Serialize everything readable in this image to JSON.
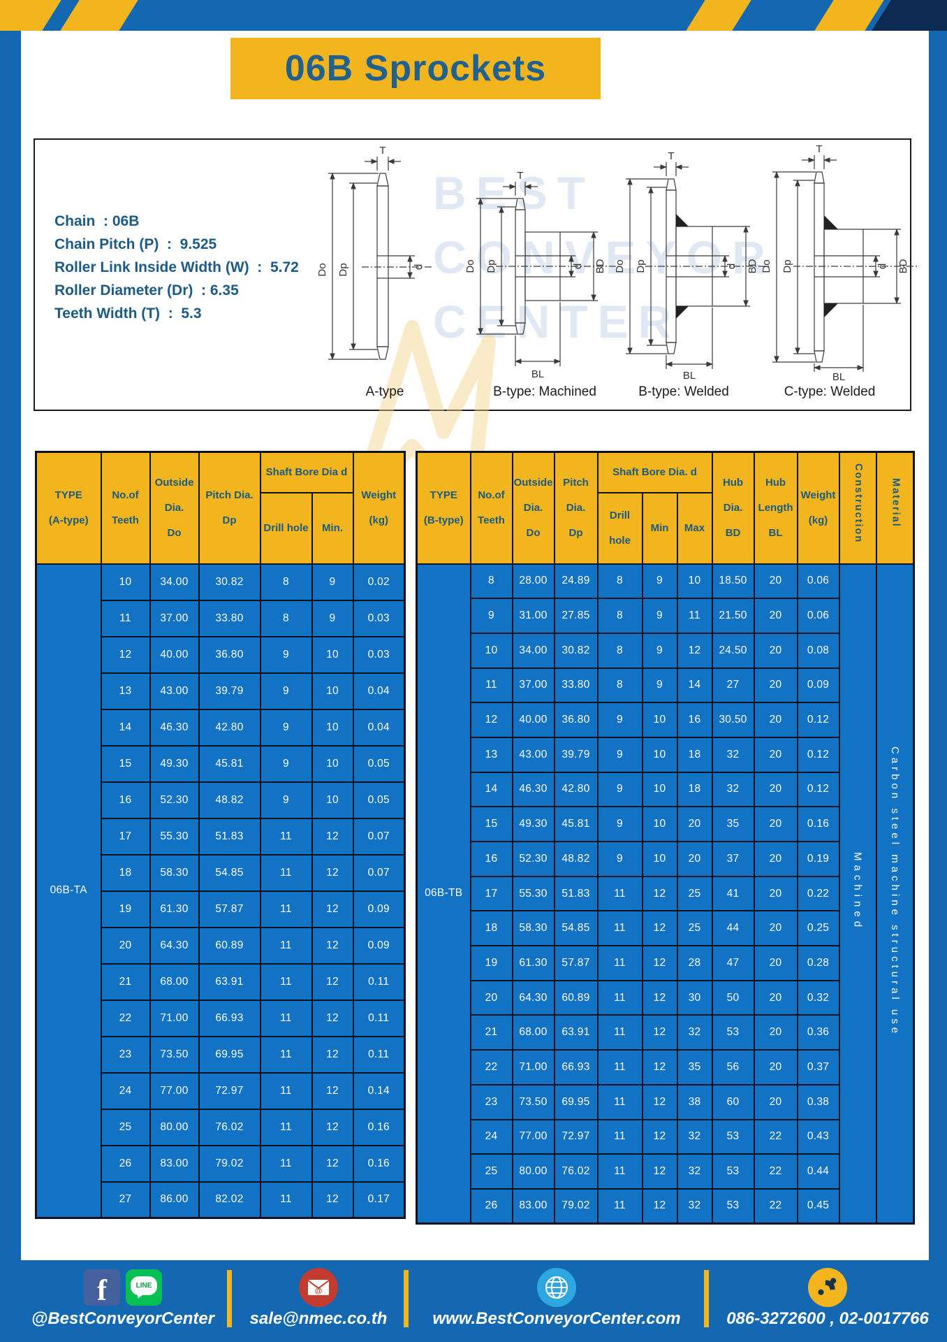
{
  "page": {
    "title": "06B Sprockets"
  },
  "specs": {
    "lines": [
      "Chain  : 06B",
      "Chain Pitch (P)  :  9.525",
      "Roller Link Inside Width (W)  :  5.72",
      "Roller Diameter (Dr)  : 6.35",
      "Teeth Width (T)  :  5.3"
    ]
  },
  "diagrams": {
    "captions": [
      "A-type",
      "B-type: Machined",
      "B-type: Welded",
      "C-type: Welded"
    ],
    "dims": {
      "t": "T",
      "dia_o": "Do",
      "dia_p": "Dp",
      "d": "d",
      "bd": "BD",
      "bl": "BL"
    }
  },
  "watermark": {
    "lines": [
      "BEST",
      "CONVEYOR",
      "CENTER"
    ]
  },
  "table_a": {
    "header": {
      "type": "TYPE\n(A-type)",
      "teeth": "No.of\nTeeth",
      "outside_dia": "Outside\nDia.\nDo",
      "pitch_dia": "Pitch Dia.\nDp",
      "bore_group": "Shaft Bore Dia d",
      "drill": "Drill hole",
      "min": "Min.",
      "weight": "Weight\n(kg)"
    },
    "type_label": "06B-TA",
    "rows": [
      [
        "10",
        "34.00",
        "30.82",
        "8",
        "9",
        "0.02"
      ],
      [
        "11",
        "37.00",
        "33.80",
        "8",
        "9",
        "0.03"
      ],
      [
        "12",
        "40.00",
        "36.80",
        "9",
        "10",
        "0.03"
      ],
      [
        "13",
        "43.00",
        "39.79",
        "9",
        "10",
        "0.04"
      ],
      [
        "14",
        "46.30",
        "42.80",
        "9",
        "10",
        "0.04"
      ],
      [
        "15",
        "49.30",
        "45.81",
        "9",
        "10",
        "0.05"
      ],
      [
        "16",
        "52.30",
        "48.82",
        "9",
        "10",
        "0.05"
      ],
      [
        "17",
        "55.30",
        "51.83",
        "11",
        "12",
        "0.07"
      ],
      [
        "18",
        "58.30",
        "54.85",
        "11",
        "12",
        "0.07"
      ],
      [
        "19",
        "61.30",
        "57.87",
        "11",
        "12",
        "0.09"
      ],
      [
        "20",
        "64.30",
        "60.89",
        "11",
        "12",
        "0.09"
      ],
      [
        "21",
        "68.00",
        "63.91",
        "11",
        "12",
        "0.11"
      ],
      [
        "22",
        "71.00",
        "66.93",
        "11",
        "12",
        "0.11"
      ],
      [
        "23",
        "73.50",
        "69.95",
        "11",
        "12",
        "0.11"
      ],
      [
        "24",
        "77.00",
        "72.97",
        "11",
        "12",
        "0.14"
      ],
      [
        "25",
        "80.00",
        "76.02",
        "11",
        "12",
        "0.16"
      ],
      [
        "26",
        "83.00",
        "79.02",
        "11",
        "12",
        "0.16"
      ],
      [
        "27",
        "86.00",
        "82.02",
        "11",
        "12",
        "0.17"
      ]
    ]
  },
  "table_b": {
    "header": {
      "type": "TYPE\n(B-type)",
      "teeth": "No.of\nTeeth",
      "outside_dia": "Outside\nDia.\nDo",
      "pitch_dia": "Pitch\nDia.\nDp",
      "bore_group": "Shaft Bore Dia.  d",
      "drill": "Drill hole",
      "min": "Min",
      "max": "Max",
      "hub_dia": "Hub\nDia.\nBD",
      "hub_length": "Hub\nLength\nBL",
      "weight": "Weight\n(kg)",
      "construction": "Construction",
      "material": "Material"
    },
    "type_label": "06B-TB",
    "construction": "Machined",
    "material": "Carbon steel machine structural use",
    "rows": [
      [
        "8",
        "28.00",
        "24.89",
        "8",
        "9",
        "10",
        "18.50",
        "20",
        "0.06"
      ],
      [
        "9",
        "31.00",
        "27.85",
        "8",
        "9",
        "11",
        "21.50",
        "20",
        "0.06"
      ],
      [
        "10",
        "34.00",
        "30.82",
        "8",
        "9",
        "12",
        "24.50",
        "20",
        "0.08"
      ],
      [
        "11",
        "37.00",
        "33.80",
        "8",
        "9",
        "14",
        "27",
        "20",
        "0.09"
      ],
      [
        "12",
        "40.00",
        "36.80",
        "9",
        "10",
        "16",
        "30.50",
        "20",
        "0.12"
      ],
      [
        "13",
        "43.00",
        "39.79",
        "9",
        "10",
        "18",
        "32",
        "20",
        "0.12"
      ],
      [
        "14",
        "46.30",
        "42.80",
        "9",
        "10",
        "18",
        "32",
        "20",
        "0.12"
      ],
      [
        "15",
        "49.30",
        "45.81",
        "9",
        "10",
        "20",
        "35",
        "20",
        "0.16"
      ],
      [
        "16",
        "52.30",
        "48.82",
        "9",
        "10",
        "20",
        "37",
        "20",
        "0.19"
      ],
      [
        "17",
        "55.30",
        "51.83",
        "11",
        "12",
        "25",
        "41",
        "20",
        "0.22"
      ],
      [
        "18",
        "58.30",
        "54.85",
        "11",
        "12",
        "25",
        "44",
        "20",
        "0.25"
      ],
      [
        "19",
        "61.30",
        "57.87",
        "11",
        "12",
        "28",
        "47",
        "20",
        "0.28"
      ],
      [
        "20",
        "64.30",
        "60.89",
        "11",
        "12",
        "30",
        "50",
        "20",
        "0.32"
      ],
      [
        "21",
        "68.00",
        "63.91",
        "11",
        "12",
        "32",
        "53",
        "20",
        "0.36"
      ],
      [
        "22",
        "71.00",
        "66.93",
        "11",
        "12",
        "35",
        "56",
        "20",
        "0.37"
      ],
      [
        "23",
        "73.50",
        "69.95",
        "11",
        "12",
        "38",
        "60",
        "20",
        "0.38"
      ],
      [
        "24",
        "77.00",
        "72.97",
        "11",
        "12",
        "32",
        "53",
        "22",
        "0.43"
      ],
      [
        "25",
        "80.00",
        "76.02",
        "11",
        "12",
        "32",
        "53",
        "22",
        "0.44"
      ],
      [
        "26",
        "83.00",
        "79.02",
        "11",
        "12",
        "32",
        "53",
        "22",
        "0.45"
      ]
    ]
  },
  "footer": {
    "social_label": "@BestConveyorCenter",
    "line_text": "LINE",
    "email": "sale@nmec.co.th",
    "website": "www.BestConveyorCenter.com",
    "phones": "086-3272600 , 02-0017766"
  },
  "colors": {
    "frame_blue": "#1368b1",
    "cell_blue": "#1273c4",
    "accent_yellow": "#f2b51e",
    "header_text_blue": "#1c5a80",
    "title_text_blue": "#20618f"
  }
}
